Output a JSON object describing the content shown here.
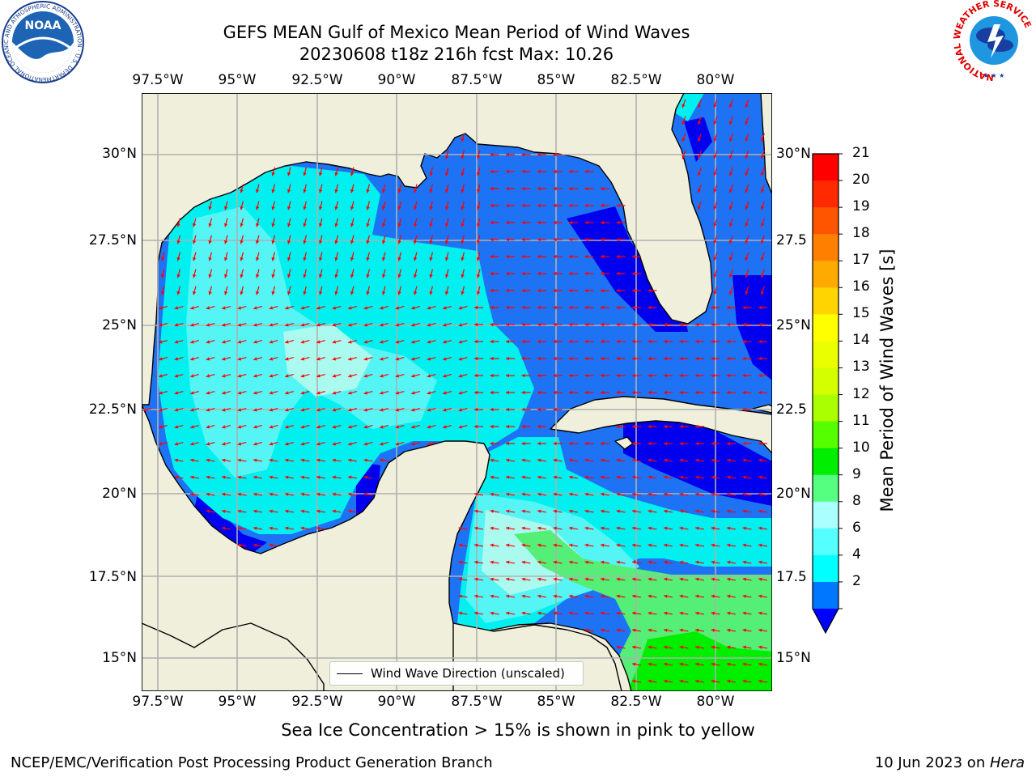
{
  "title_line1": "GEFS MEAN Gulf of Mexico Mean Period of Wind Waves",
  "title_line2": "20230608 t18z 216h fcst   Max: 10.26",
  "lon_ticks": [
    "97.5°W",
    "95°W",
    "92.5°W",
    "90°W",
    "87.5°W",
    "85°W",
    "82.5°W",
    "80°W"
  ],
  "lat_ticks_left": [
    "30°N",
    "27.5°N",
    "25°N",
    "22.5°N",
    "20°N",
    "17.5°N",
    "15°N"
  ],
  "lat_ticks_right": [
    "30°N",
    "27.5",
    "25°N",
    "22.5",
    "20°N",
    "17.5",
    "15°N"
  ],
  "legend_label": "Wind Wave Direction (unscaled)",
  "colorbar": {
    "title": "Mean Period of Wind Waves [s]",
    "labels": [
      "21",
      "20",
      "19",
      "18",
      "17",
      "16",
      "15",
      "14",
      "13",
      "12",
      "11",
      "10",
      "9",
      "8",
      "6",
      "4",
      "2"
    ],
    "colors": [
      "#ff0000",
      "#ff2a00",
      "#ff5500",
      "#ff7f00",
      "#ffaa00",
      "#ffd400",
      "#ffff00",
      "#eaff00",
      "#d4ff00",
      "#aaff00",
      "#55ff00",
      "#00ee00",
      "#55ff7f",
      "#aaffff",
      "#55ffff",
      "#00ffff",
      "#0077ff"
    ],
    "extend_color": "#0000ff"
  },
  "map_colors": {
    "land": "#efefdc",
    "ocean_2_4": "#1e73f5",
    "ocean_under_2": "#0000ee",
    "ocean_4_6": "#00f0f0",
    "ocean_6_8": "#55f5f5",
    "ocean_8_9": "#aafaf0",
    "ocean_9_10": "#55ee77",
    "ocean_10_11": "#00ee00",
    "arrow": "#ff0000",
    "grid": "#b0b0b0"
  },
  "note": "Sea Ice Concentration > 15% is shown in pink to yellow",
  "footer_left": "NCEP/EMC/Verification Post Processing Product Generation Branch",
  "footer_right_date": "10 Jun 2023 on ",
  "footer_right_host": "Hera",
  "noaa_logo_text": "NOAA",
  "noaa_ring_text": "NATIONAL OCEANIC AND ATMOSPHERIC ADMINISTRATION · U.S. DEPARTMENT OF COMMERCE",
  "nws_ring_text": "NATIONAL WEATHER SERVICE"
}
